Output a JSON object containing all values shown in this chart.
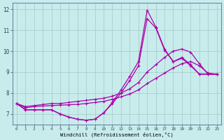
{
  "title": "",
  "xlabel": "Windchill (Refroidissement éolien,°C)",
  "ylabel": "",
  "bg_color": "#c8ecec",
  "line_color": "#aa00aa",
  "grid_color": "#aacccc",
  "xlim": [
    -0.5,
    23.5
  ],
  "ylim": [
    6.5,
    12.3
  ],
  "yticks": [
    7,
    8,
    9,
    10,
    11,
    12
  ],
  "xticks": [
    0,
    1,
    2,
    3,
    4,
    5,
    6,
    7,
    8,
    9,
    10,
    11,
    12,
    13,
    14,
    15,
    16,
    17,
    18,
    19,
    20,
    21,
    22,
    23
  ],
  "series": [
    {
      "x": [
        0,
        1,
        2,
        3,
        4,
        5,
        6,
        7,
        8,
        9,
        10,
        11,
        12,
        13,
        14,
        15,
        16,
        17,
        18,
        19,
        20,
        21,
        22,
        23
      ],
      "y": [
        7.5,
        7.2,
        7.2,
        7.2,
        7.2,
        7.0,
        6.85,
        6.75,
        6.7,
        6.75,
        7.05,
        7.55,
        8.15,
        8.8,
        9.5,
        11.95,
        11.15,
        10.1,
        9.5,
        9.7,
        9.35,
        8.9,
        8.9,
        8.9
      ]
    },
    {
      "x": [
        0,
        1,
        2,
        3,
        4,
        5,
        6,
        7,
        8,
        9,
        10,
        11,
        12,
        13,
        14,
        15,
        16,
        17,
        18,
        19,
        20,
        21,
        22,
        23
      ],
      "y": [
        7.5,
        7.2,
        7.2,
        7.2,
        7.2,
        7.0,
        6.85,
        6.75,
        6.7,
        6.75,
        7.05,
        7.5,
        8.0,
        8.6,
        9.3,
        11.55,
        11.1,
        10.05,
        9.5,
        9.65,
        9.3,
        8.9,
        8.9,
        8.9
      ]
    },
    {
      "x": [
        0,
        1,
        2,
        3,
        4,
        5,
        6,
        7,
        8,
        9,
        10,
        11,
        12,
        13,
        14,
        15,
        16,
        17,
        18,
        19,
        20,
        21,
        22,
        23
      ],
      "y": [
        7.5,
        7.35,
        7.4,
        7.45,
        7.5,
        7.5,
        7.55,
        7.6,
        7.65,
        7.7,
        7.75,
        7.85,
        8.0,
        8.2,
        8.5,
        9.0,
        9.35,
        9.7,
        10.0,
        10.1,
        9.95,
        9.4,
        8.9,
        8.9
      ]
    },
    {
      "x": [
        0,
        1,
        2,
        3,
        4,
        5,
        6,
        7,
        8,
        9,
        10,
        11,
        12,
        13,
        14,
        15,
        16,
        17,
        18,
        19,
        20,
        21,
        22,
        23
      ],
      "y": [
        7.5,
        7.3,
        7.35,
        7.38,
        7.4,
        7.42,
        7.44,
        7.46,
        7.5,
        7.55,
        7.6,
        7.7,
        7.82,
        7.95,
        8.15,
        8.45,
        8.7,
        8.95,
        9.2,
        9.4,
        9.5,
        9.3,
        8.95,
        8.9
      ]
    }
  ]
}
